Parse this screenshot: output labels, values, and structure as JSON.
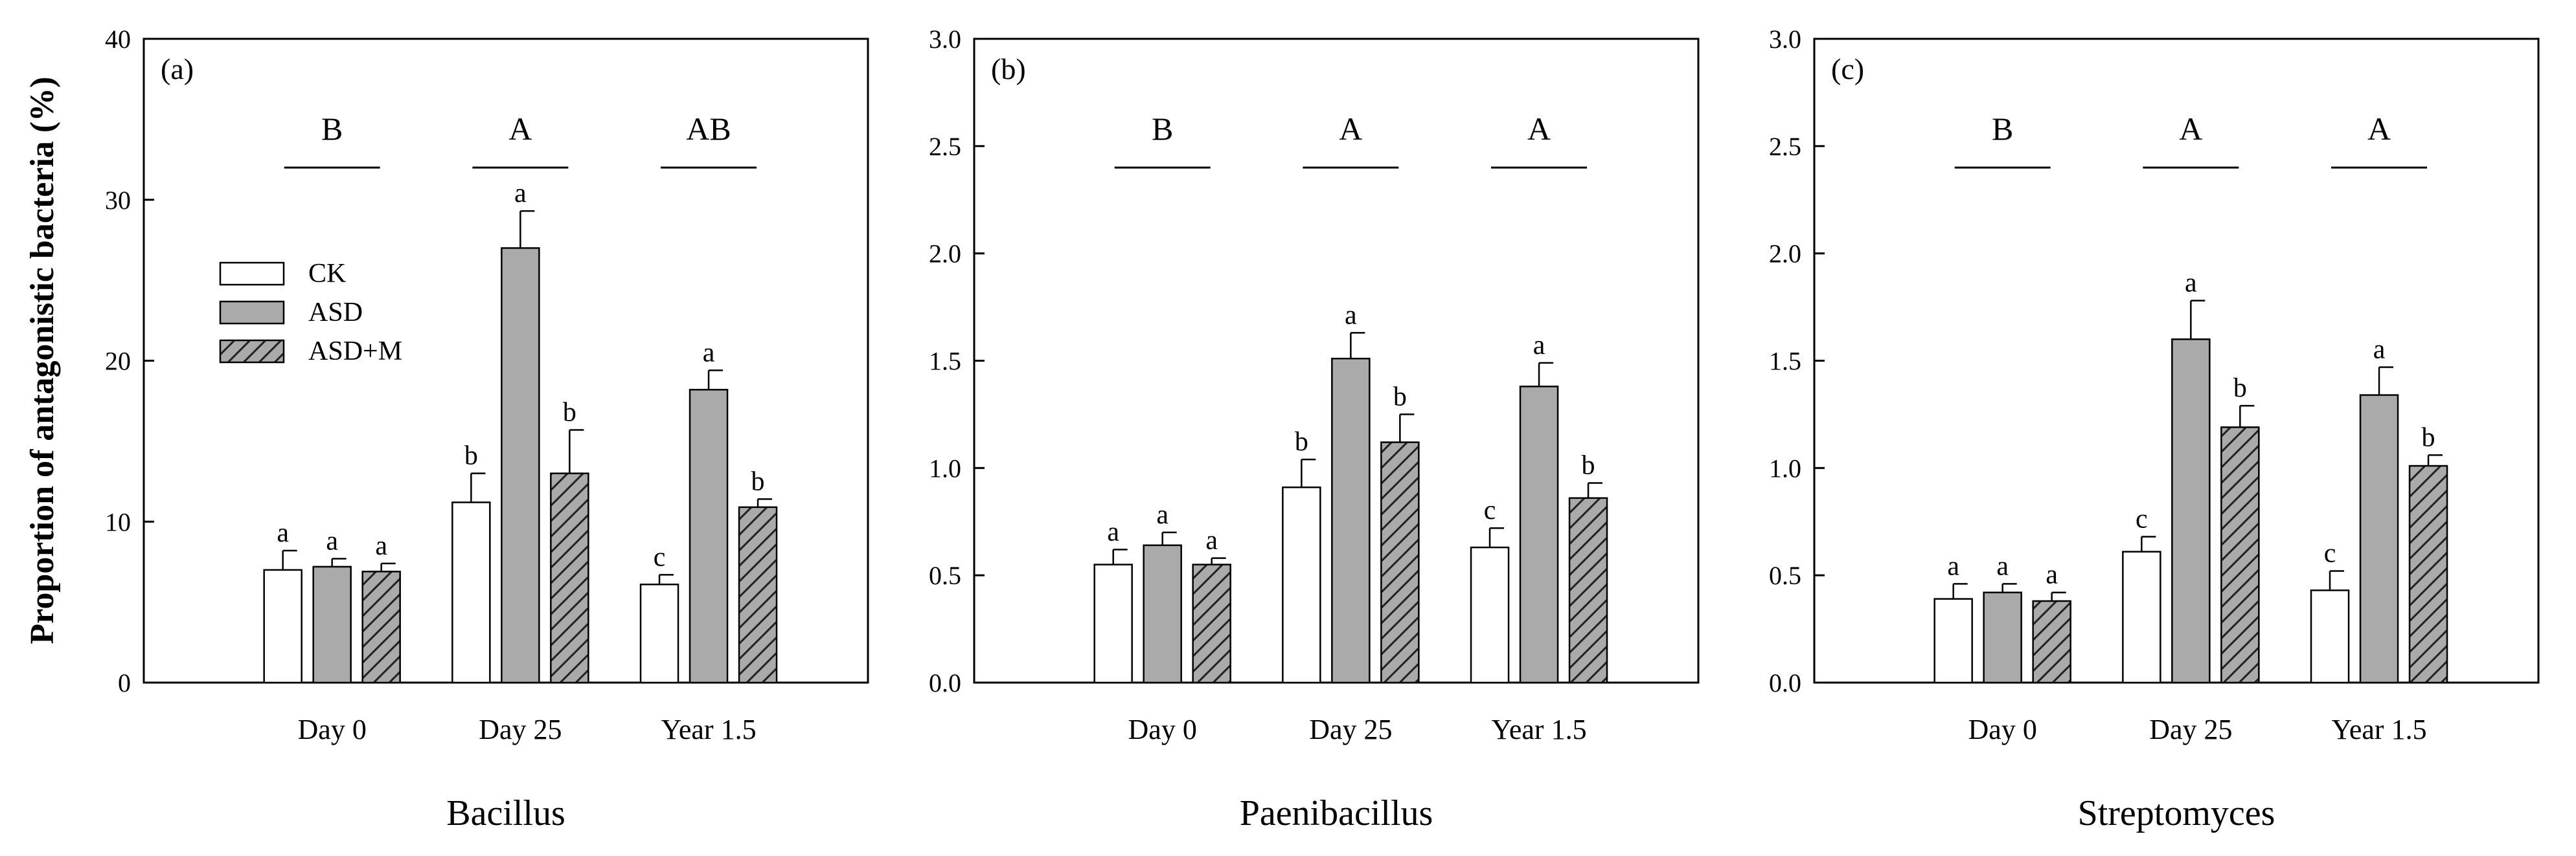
{
  "figure": {
    "y_axis_title": "Proportion of antagonistic bacteria (%)"
  },
  "legend": {
    "items": [
      {
        "name": "CK",
        "fill": "#ffffff"
      },
      {
        "name": "ASD",
        "fill": "#aaaaaa"
      },
      {
        "name": "ASD+M",
        "fill": "#aaaaaa",
        "hatched": true
      }
    ]
  },
  "colors": {
    "ck": "#ffffff",
    "asd": "#aaaaaa",
    "asdm": "#aaaaaa",
    "stroke": "#000000",
    "hatch": "#222222"
  },
  "chart_data": [
    {
      "type": "bar",
      "panel_label": "(a)",
      "title": "Bacillus",
      "xlabel": "Bacillus",
      "ylabel": "Proportion of antagonistic bacteria (%)",
      "categories": [
        "Day 0",
        "Day 25",
        "Year 1.5"
      ],
      "group_letters": [
        "B",
        "A",
        "AB"
      ],
      "ylim": [
        0,
        40
      ],
      "yticks": [
        0,
        10,
        20,
        30,
        40
      ],
      "ytick_labels": [
        "0",
        "10",
        "20",
        "30",
        "40"
      ],
      "series": [
        {
          "name": "CK",
          "values": [
            7.0,
            11.2,
            6.1
          ],
          "errors": [
            1.2,
            1.8,
            0.6
          ],
          "letters": [
            "a",
            "b",
            "c"
          ]
        },
        {
          "name": "ASD",
          "values": [
            7.2,
            27.0,
            18.2
          ],
          "errors": [
            0.5,
            2.3,
            1.2
          ],
          "letters": [
            "a",
            "a",
            "a"
          ]
        },
        {
          "name": "ASD+M",
          "values": [
            6.9,
            13.0,
            10.9
          ],
          "errors": [
            0.5,
            2.7,
            0.5
          ],
          "letters": [
            "a",
            "b",
            "b"
          ]
        }
      ]
    },
    {
      "type": "bar",
      "panel_label": "(b)",
      "title": "Paenibacillus",
      "xlabel": "Paenibacillus",
      "ylabel": "",
      "categories": [
        "Day 0",
        "Day 25",
        "Year 1.5"
      ],
      "group_letters": [
        "B",
        "A",
        "A"
      ],
      "ylim": [
        0,
        3.0
      ],
      "yticks": [
        0,
        0.5,
        1.0,
        1.5,
        2.0,
        2.5,
        3.0
      ],
      "ytick_labels": [
        "0.0",
        "0.5",
        "1.0",
        "1.5",
        "2.0",
        "2.5",
        "3.0"
      ],
      "series": [
        {
          "name": "CK",
          "values": [
            0.55,
            0.91,
            0.63
          ],
          "errors": [
            0.07,
            0.13,
            0.09
          ],
          "letters": [
            "a",
            "b",
            "c"
          ]
        },
        {
          "name": "ASD",
          "values": [
            0.64,
            1.51,
            1.38
          ],
          "errors": [
            0.06,
            0.12,
            0.11
          ],
          "letters": [
            "a",
            "a",
            "a"
          ]
        },
        {
          "name": "ASD+M",
          "values": [
            0.55,
            1.12,
            0.86
          ],
          "errors": [
            0.03,
            0.13,
            0.07
          ],
          "letters": [
            "a",
            "b",
            "b"
          ]
        }
      ]
    },
    {
      "type": "bar",
      "panel_label": "(c)",
      "title": "Streptomyces",
      "xlabel": "Streptomyces",
      "ylabel": "",
      "categories": [
        "Day 0",
        "Day 25",
        "Year 1.5"
      ],
      "group_letters": [
        "B",
        "A",
        "A"
      ],
      "ylim": [
        0,
        3.0
      ],
      "yticks": [
        0,
        0.5,
        1.0,
        1.5,
        2.0,
        2.5,
        3.0
      ],
      "ytick_labels": [
        "0.0",
        "0.5",
        "1.0",
        "1.5",
        "2.0",
        "2.5",
        "3.0"
      ],
      "series": [
        {
          "name": "CK",
          "values": [
            0.39,
            0.61,
            0.43
          ],
          "errors": [
            0.07,
            0.07,
            0.09
          ],
          "letters": [
            "a",
            "c",
            "c"
          ]
        },
        {
          "name": "ASD",
          "values": [
            0.42,
            1.6,
            1.34
          ],
          "errors": [
            0.04,
            0.18,
            0.13
          ],
          "letters": [
            "a",
            "a",
            "a"
          ]
        },
        {
          "name": "ASD+M",
          "values": [
            0.38,
            1.19,
            1.01
          ],
          "errors": [
            0.04,
            0.1,
            0.05
          ],
          "letters": [
            "a",
            "b",
            "b"
          ]
        }
      ]
    }
  ]
}
